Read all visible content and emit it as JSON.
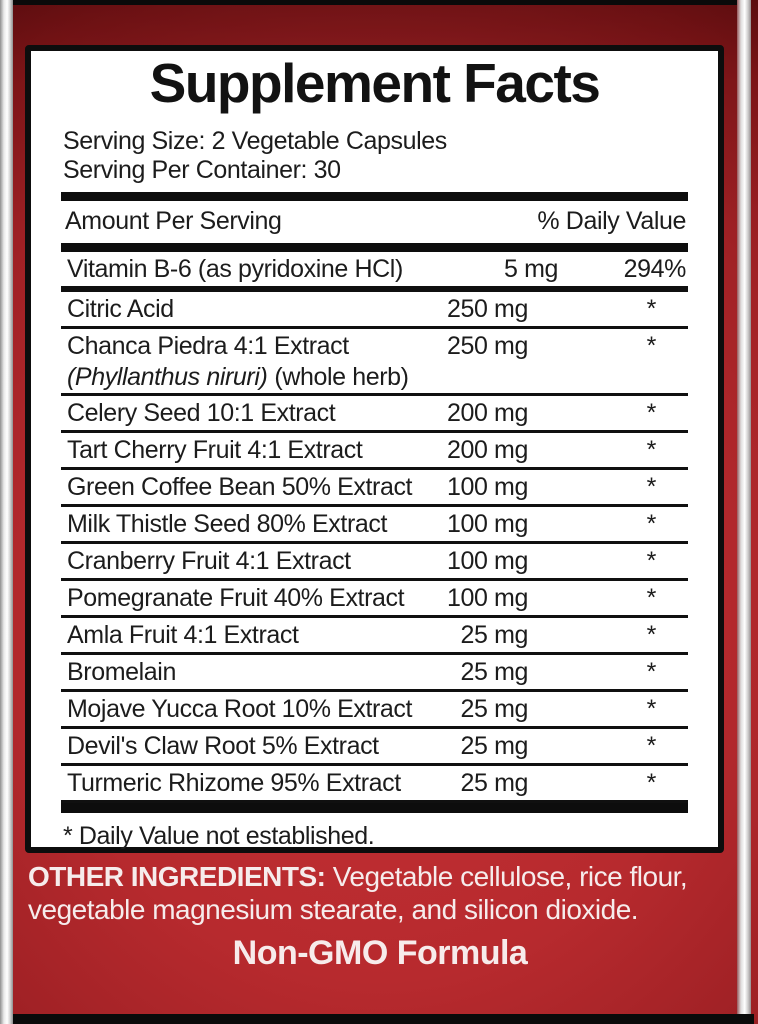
{
  "panel": {
    "title": "Supplement Facts",
    "serving_size": "Serving Size: 2 Vegetable Capsules",
    "serving_per_container": "Serving Per Container: 30",
    "amount_header": "Amount Per Serving",
    "dv_header": "% Daily Value",
    "rows": [
      {
        "name": "Vitamin B-6 (as pyridoxine HCl)",
        "amount": "5 mg",
        "dv": "294%"
      },
      {
        "name": "Citric Acid",
        "amount": "250 mg",
        "dv": "*"
      },
      {
        "name": "Chanca Piedra 4:1 Extract",
        "sub_italic": "(Phyllanthus niruri)",
        "sub_rest": "(whole herb)",
        "amount": "250 mg",
        "dv": "*"
      },
      {
        "name": "Celery Seed 10:1 Extract",
        "amount": "200 mg",
        "dv": "*"
      },
      {
        "name": "Tart Cherry Fruit 4:1 Extract",
        "amount": "200 mg",
        "dv": "*"
      },
      {
        "name": "Green Coffee Bean 50% Extract",
        "amount": "100 mg",
        "dv": "*"
      },
      {
        "name": "Milk Thistle Seed 80% Extract",
        "amount": "100 mg",
        "dv": "*"
      },
      {
        "name": "Cranberry Fruit 4:1 Extract",
        "amount": "100 mg",
        "dv": "*"
      },
      {
        "name": "Pomegranate Fruit 40% Extract",
        "amount": "100 mg",
        "dv": "*"
      },
      {
        "name": "Amla Fruit 4:1 Extract",
        "amount": "25 mg",
        "dv": "*"
      },
      {
        "name": "Bromelain",
        "amount": "25 mg",
        "dv": "*"
      },
      {
        "name": "Mojave Yucca Root 10% Extract",
        "amount": "25 mg",
        "dv": "*"
      },
      {
        "name": "Devil's Claw Root 5% Extract",
        "amount": "25 mg",
        "dv": "*"
      },
      {
        "name": "Turmeric Rhizome 95% Extract",
        "amount": "25 mg",
        "dv": "*"
      }
    ],
    "footnote": "* Daily Value not established."
  },
  "footer": {
    "other_ingredients_label": "OTHER INGREDIENTS:",
    "other_ingredients_rest": "Vegetable cellulose, rice flour, vegetable magnesium stearate, and silicon dioxide.",
    "non_gmo": "Non-GMO Formula"
  },
  "colors": {
    "label_red_center": "#c02d31",
    "label_red_top": "#b52c31",
    "label_red_edge": "#701114",
    "panel_bg": "#ffffff",
    "panel_border": "#0d0d0d",
    "panel_text": "#1c1c1c",
    "footer_text": "#f6ecec",
    "silver_strip": "#ffffff"
  }
}
